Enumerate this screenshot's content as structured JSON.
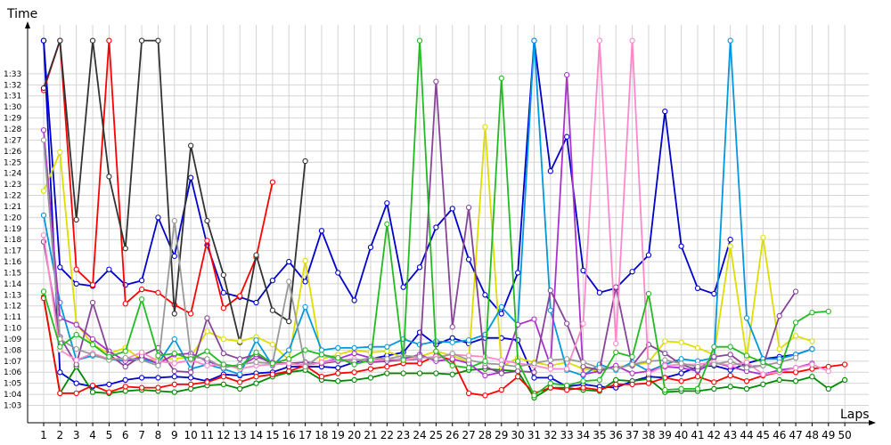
{
  "chart_data": {
    "type": "line",
    "title": "",
    "xlabel": "Laps",
    "ylabel": "Time",
    "x": [
      1,
      2,
      3,
      4,
      5,
      6,
      7,
      8,
      9,
      10,
      11,
      12,
      13,
      14,
      15,
      16,
      17,
      18,
      19,
      20,
      21,
      22,
      23,
      24,
      25,
      26,
      27,
      28,
      29,
      30,
      31,
      32,
      33,
      34,
      35,
      36,
      37,
      38,
      39,
      40,
      41,
      42,
      43,
      44,
      45,
      46,
      47,
      48,
      49,
      50
    ],
    "xlim": [
      1,
      50
    ],
    "y_ticks": [
      "1:03",
      "1:04",
      "1:05",
      "1:06",
      "1:07",
      "1:08",
      "1:09",
      "1:10",
      "1:11",
      "1:12",
      "1:13",
      "1:14",
      "1:15",
      "1:16",
      "1:17",
      "1:18",
      "1:19",
      "1:20",
      "1:21",
      "1:22",
      "1:23",
      "1:24",
      "1:25",
      "1:26",
      "1:27",
      "1:28",
      "1:29",
      "1:30",
      "1:31",
      "1:32",
      "1:33"
    ],
    "ylim_seconds": [
      62,
      96
    ],
    "grid": true,
    "legend": "none",
    "series": [
      {
        "color": "#0000cc",
        "values": [
          96,
          75.5,
          74,
          73.8,
          75.3,
          73.9,
          74.3,
          80,
          76.5,
          83.6,
          77.5,
          73.2,
          72.8,
          72.3,
          74.3,
          76,
          74.2,
          78.8,
          75,
          72.5,
          77.3,
          81.3,
          73.7,
          75.5,
          79.1,
          80.8,
          76.2,
          73,
          71.3,
          75,
          96,
          84.2,
          87.3,
          75.2,
          73.2,
          73.6,
          75.1,
          76.6,
          89.6,
          77.4,
          73.6,
          73.1,
          78,
          null,
          null,
          null,
          null,
          null,
          null,
          null
        ]
      },
      {
        "color": "#0000cc",
        "values": [
          96,
          66,
          65,
          64.7,
          64.9,
          65.3,
          65.5,
          65.5,
          65.6,
          65.5,
          65.2,
          65.8,
          65.7,
          65.9,
          66,
          66.5,
          66.5,
          66.5,
          66.4,
          66.9,
          67.2,
          67.5,
          67.8,
          69.6,
          68.5,
          69.1,
          68.6,
          69.1,
          69.1,
          68.9,
          65.5,
          65.5,
          64.7,
          64.9,
          64.7,
          64.6,
          65.2,
          65.6,
          65.5,
          65.9,
          66.5,
          66.6,
          66.2,
          66.8,
          67.2,
          67.4,
          67.6,
          68.1,
          null,
          null
        ]
      },
      {
        "color": "#008800",
        "values": [
          72.8,
          64.1,
          66.5,
          64.2,
          64.1,
          64.3,
          64.4,
          64.3,
          64.2,
          64.5,
          64.8,
          64.9,
          64.5,
          65,
          65.6,
          66,
          66.2,
          65.3,
          65.2,
          65.3,
          65.5,
          65.9,
          65.9,
          65.9,
          65.9,
          65.8,
          66.2,
          66.3,
          66.2,
          66.1,
          63.7,
          64.6,
          64.6,
          64.4,
          64.3,
          65.3,
          65.2,
          65.4,
          64.2,
          64.3,
          64.3,
          64.5,
          64.7,
          64.5,
          64.9,
          65.3,
          65.2,
          65.6,
          64.5,
          65.3
        ]
      },
      {
        "color": "#ff0000",
        "values": [
          72.7,
          64.1,
          64.1,
          64.8,
          64.2,
          64.7,
          64.6,
          64.6,
          64.9,
          64.9,
          65.1,
          65.6,
          65.1,
          65.6,
          65.8,
          66.1,
          66.6,
          65.6,
          65.9,
          66,
          66.3,
          66.5,
          66.8,
          66.8,
          67.5,
          67.1,
          64.1,
          63.9,
          64.4,
          65.6,
          64.1,
          64.6,
          64.4,
          64.6,
          64.4,
          64.9,
          64.9,
          65,
          65.5,
          65.2,
          65.6,
          65.1,
          65.7,
          65.2,
          65.7,
          66,
          66,
          66.3,
          66.5,
          66.7
        ]
      },
      {
        "color": "#ff0000",
        "values": [
          91.5,
          96,
          75.3,
          73.9,
          96,
          72.2,
          73.5,
          73.2,
          72.1,
          71.3,
          77.9,
          71.8,
          72.9,
          76.4,
          83.2,
          null,
          null,
          null,
          null,
          null,
          null,
          null,
          null,
          null,
          null,
          null,
          null,
          null,
          null,
          null,
          null,
          null,
          null,
          null,
          null,
          null,
          null,
          null,
          null,
          null,
          null,
          null,
          null,
          null,
          null,
          null,
          null,
          null,
          null,
          null
        ]
      },
      {
        "color": "#333333",
        "values": [
          91.7,
          96,
          79.8,
          96,
          83.7,
          77.2,
          96,
          96,
          71.3,
          86.5,
          79.7,
          74.8,
          68.7,
          76.6,
          71.6,
          70.6,
          85.1,
          null,
          null,
          null,
          null,
          null,
          null,
          null,
          null,
          null,
          null,
          null,
          null,
          null,
          null,
          null,
          null,
          null,
          null,
          null,
          null,
          null,
          null,
          null,
          null,
          null,
          null,
          null,
          null,
          null,
          null,
          null,
          null,
          null
        ]
      },
      {
        "color": "#dddd00",
        "values": [
          82.4,
          85.9,
          70.4,
          68.5,
          67.7,
          68.2,
          67.1,
          67.2,
          67.2,
          67.4,
          69.7,
          69,
          68.8,
          69.2,
          68.5,
          67.1,
          76.1,
          67.2,
          67.6,
          68,
          67.8,
          67.9,
          67.3,
          67.4,
          67.9,
          67.5,
          66.9,
          88.2,
          66.5,
          67.3,
          66.9,
          66.6,
          66.9,
          66.3,
          66.1,
          66.5,
          66.6,
          66.9,
          68.8,
          68.7,
          68.2,
          67.6,
          77.4,
          67.3,
          78.2,
          68.1,
          69.3,
          68.8,
          null,
          null
        ]
      },
      {
        "color": "#0099dd",
        "values": [
          80.2,
          72.3,
          67.1,
          67.5,
          67.2,
          67,
          67.2,
          66.8,
          69,
          66.3,
          66.7,
          66.3,
          65.8,
          68.9,
          66.6,
          68,
          71.9,
          68,
          68.2,
          68.2,
          68.3,
          68.3,
          69,
          68.5,
          68.8,
          68.7,
          68.9,
          69.4,
          71.9,
          70.3,
          96,
          71.6,
          66.2,
          65.7,
          66.7,
          66.2,
          66.9,
          66.1,
          66.7,
          67.2,
          67,
          67.3,
          96,
          70.9,
          67.2,
          67.2,
          67.6,
          68.1,
          null,
          null
        ]
      },
      {
        "color": "#aa33cc",
        "values": [
          87.9,
          70.9,
          70.3,
          69,
          67.9,
          67,
          67.4,
          66.8,
          67.6,
          67.7,
          67,
          66.5,
          66.6,
          67.4,
          66.9,
          66.8,
          66.6,
          66.9,
          67.2,
          67.7,
          67.3,
          67.1,
          67.2,
          67.6,
          67,
          67.2,
          66.8,
          65.7,
          66,
          70.3,
          70.8,
          66.6,
          92.9,
          65.8,
          66.1,
          66.6,
          65.9,
          66.1,
          66.5,
          66.4,
          66.1,
          66.9,
          66.5,
          66.1,
          65.8,
          66.2,
          66.4,
          66.8,
          null,
          null
        ]
      },
      {
        "color": "#884499",
        "values": [
          77.8,
          69.2,
          66.7,
          72.3,
          67.6,
          66.5,
          67.5,
          68.2,
          66.1,
          66,
          70.9,
          67.7,
          67.2,
          67.6,
          66.7,
          66.8,
          66.9,
          66.8,
          67,
          67.1,
          66.9,
          67,
          67.1,
          67.2,
          92.3,
          70.1,
          80.9,
          66.5,
          65.9,
          66.1,
          66,
          73.4,
          70.4,
          66.5,
          66.2,
          73.7,
          66.6,
          68.5,
          67.7,
          66.7,
          66.2,
          67.4,
          67.6,
          66.5,
          66.6,
          71.1,
          73.3,
          null,
          null,
          null
        ]
      },
      {
        "color": "#ff88cc",
        "values": [
          78.4,
          68,
          67.1,
          67.7,
          67.2,
          67.2,
          67.8,
          67,
          66.8,
          67.1,
          66.6,
          66.7,
          66.3,
          66.6,
          66.7,
          66.8,
          66.6,
          66.9,
          67.1,
          67.2,
          67,
          67.2,
          67.1,
          67.3,
          67.4,
          67.6,
          67.5,
          67.4,
          67.1,
          66.8,
          66.6,
          66.3,
          66.3,
          70.4,
          96,
          68.6,
          96,
          65.9,
          66.6,
          66.7,
          66.7,
          66.9,
          66.6,
          66.9,
          65.8,
          66,
          66.4,
          66.7,
          66.1,
          null
        ]
      },
      {
        "color": "#999999",
        "values": [
          87,
          69,
          68.1,
          67.6,
          67.1,
          67.3,
          67.1,
          66.6,
          79.7,
          67.4,
          67.2,
          66.4,
          66.7,
          66.9,
          66.8,
          74.2,
          66.5,
          67.6,
          67.1,
          67,
          67.3,
          67.2,
          67.5,
          67.4,
          67.2,
          67.7,
          67.1,
          66.8,
          66.7,
          66.5,
          66.8,
          67.1,
          67.2,
          66.9,
          66.4,
          66.3,
          66.7,
          67,
          67.1,
          66.8,
          66.5,
          66.7,
          67,
          66.4,
          66.6,
          66.9,
          67.3,
          null,
          null,
          null
        ]
      },
      {
        "color": "#22bb22",
        "values": [
          73.3,
          68.3,
          69.4,
          68.5,
          67.4,
          67.9,
          72.6,
          67.5,
          67.7,
          67.2,
          67.9,
          66.7,
          66.5,
          67.8,
          66.8,
          67.2,
          68,
          67.6,
          67.3,
          66.7,
          67.1,
          79.4,
          67.1,
          96,
          67.9,
          66.6,
          66.4,
          67,
          92.6,
          67,
          63.9,
          65,
          64.8,
          65.2,
          65.3,
          67.8,
          67.4,
          73.1,
          64.4,
          64.5,
          64.5,
          68.3,
          68.3,
          67.5,
          66.9,
          66.2,
          70.5,
          71.4,
          71.5,
          null
        ]
      }
    ]
  }
}
